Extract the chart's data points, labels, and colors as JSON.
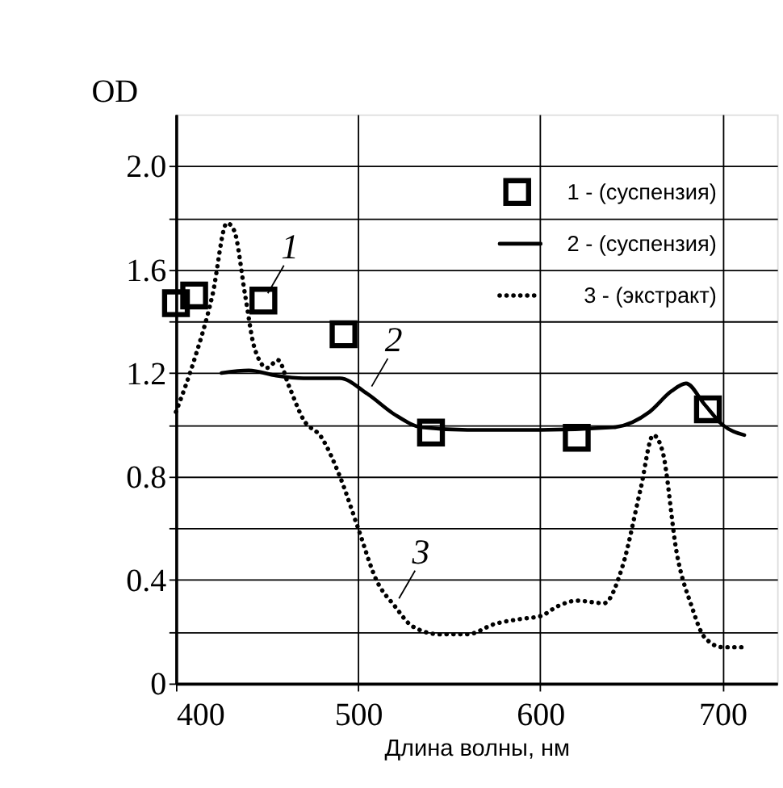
{
  "chart_data": {
    "type": "line",
    "xlabel": "Длина волны, нм",
    "ylabel": "OD",
    "xlim": [
      400,
      730
    ],
    "ylim": [
      0,
      2.2
    ],
    "xticks": [
      400,
      500,
      600,
      700
    ],
    "yticks": [
      0,
      {
        "value": 0.2,
        "label": null
      },
      0.4,
      {
        "value": 0.6,
        "label": null
      },
      0.8,
      {
        "value": 1.0,
        "label": null
      },
      1.2,
      {
        "value": 1.4,
        "label": null
      },
      1.6,
      {
        "value": 1.8,
        "label": null
      },
      {
        "value": 2.0,
        "label": "2.0"
      }
    ],
    "grid": true,
    "legend": "top right",
    "series": [
      {
        "name": "1 - (суспензия)",
        "type": "scatter",
        "marker": "square",
        "color": "#000000",
        "x": [
          400,
          410,
          448,
          492,
          540,
          620,
          692
        ],
        "values": [
          1.47,
          1.5,
          1.48,
          1.35,
          0.97,
          0.95,
          1.06
        ]
      },
      {
        "name": "2 - (суспензия)",
        "line_style": "solid",
        "color": "#000000",
        "x": [
          425,
          440,
          455,
          470,
          490,
          505,
          520,
          535,
          560,
          600,
          640,
          660,
          672,
          680,
          690,
          700,
          712
        ],
        "values": [
          1.2,
          1.21,
          1.19,
          1.18,
          1.18,
          1.12,
          1.04,
          0.99,
          0.98,
          0.98,
          0.99,
          1.05,
          1.13,
          1.16,
          1.08,
          1.0,
          0.96
        ]
      },
      {
        "name": "3 - (экстракт)",
        "line_style": "dotted",
        "color": "#000000",
        "x": [
          400,
          410,
          420,
          428,
          432,
          438,
          443,
          450,
          456,
          462,
          470,
          480,
          490,
          500,
          510,
          520,
          530,
          545,
          560,
          575,
          590,
          600,
          610,
          620,
          635,
          645,
          655,
          662,
          667,
          675,
          683,
          690,
          700,
          712
        ],
        "values": [
          1.05,
          1.25,
          1.5,
          1.78,
          1.75,
          1.5,
          1.3,
          1.22,
          1.25,
          1.15,
          1.02,
          0.95,
          0.8,
          0.6,
          0.4,
          0.3,
          0.22,
          0.19,
          0.19,
          0.23,
          0.25,
          0.26,
          0.3,
          0.32,
          0.31,
          0.45,
          0.75,
          0.96,
          0.9,
          0.5,
          0.3,
          0.18,
          0.14,
          0.14
        ]
      }
    ],
    "annotations": [
      {
        "text": "1",
        "x": 448,
        "y": 1.48
      },
      {
        "text": "2",
        "x": 505,
        "y": 1.12
      },
      {
        "text": "3",
        "x": 520,
        "y": 0.3
      }
    ]
  }
}
